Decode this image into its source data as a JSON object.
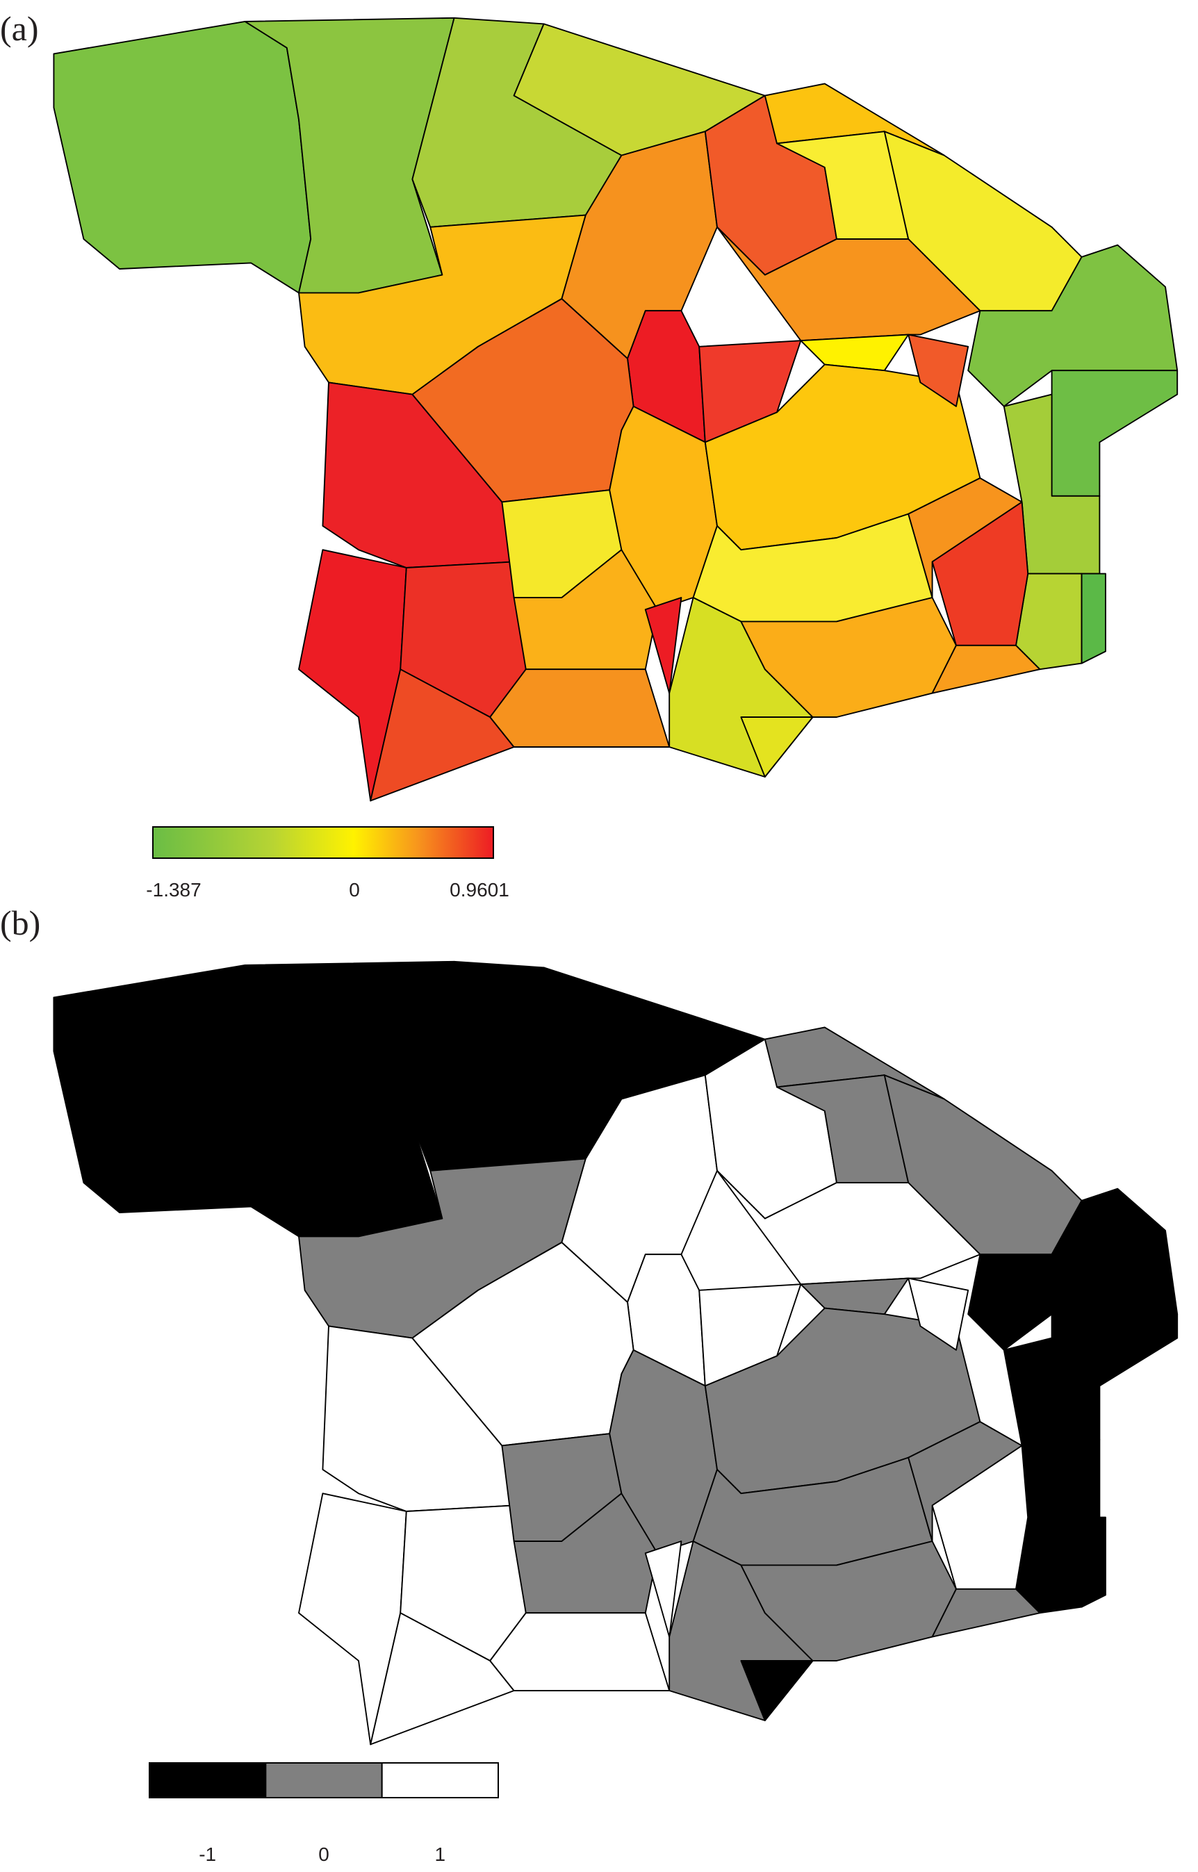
{
  "panels": [
    {
      "label": "(a)",
      "legend": {
        "style": "gradient",
        "colors": [
          "#6abd45",
          "#b7d433",
          "#fff200",
          "#f7941d",
          "#ed1c24"
        ],
        "ticks": [
          "-1.387",
          "0",
          "0.9601"
        ]
      }
    },
    {
      "label": "(b)",
      "legend": {
        "style": "classes",
        "colors": [
          "#000000",
          "#808080",
          "#ffffff"
        ],
        "ticks": [
          "-1",
          "0",
          "1"
        ]
      }
    }
  ]
}
